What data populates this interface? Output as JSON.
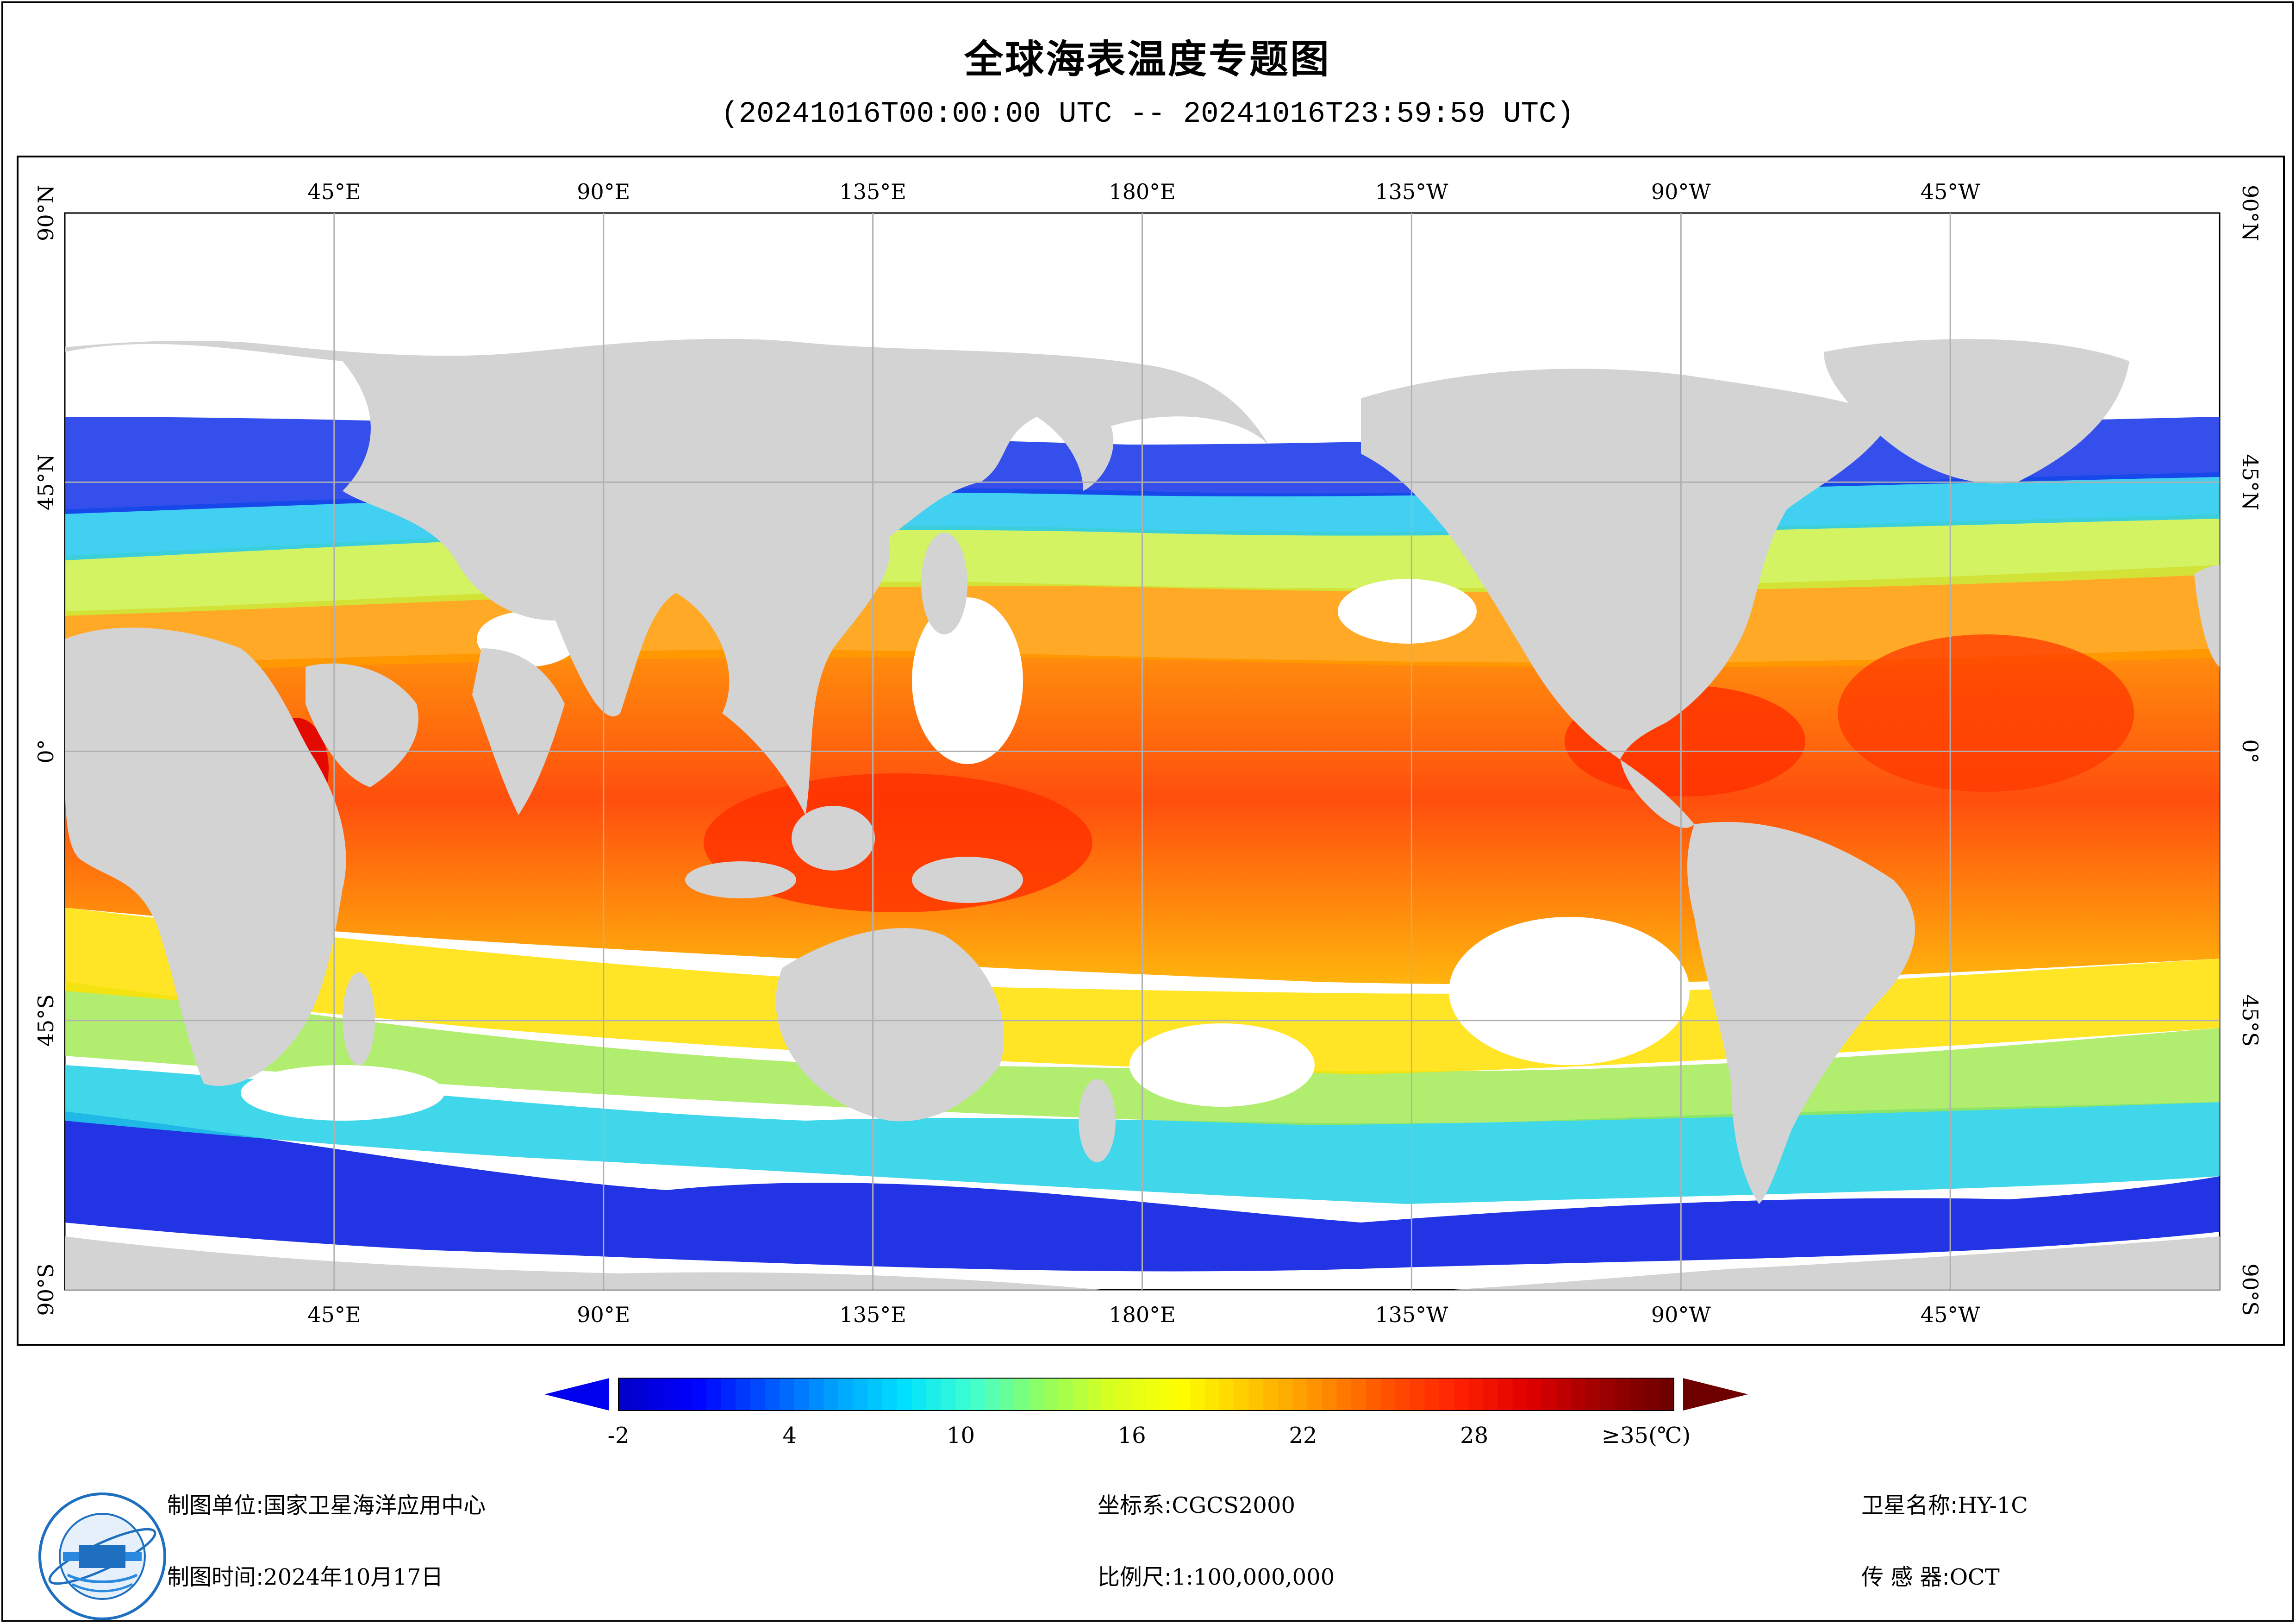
{
  "title": "全球海表温度专题图",
  "subtitle": "(20241016T00:00:00 UTC -- 20241016T23:59:59 UTC)",
  "map": {
    "lon_labels": [
      "45°E",
      "90°E",
      "135°E",
      "180°E",
      "135°W",
      "90°W",
      "45°W"
    ],
    "lat_labels": [
      "90°N",
      "45°N",
      "0°",
      "45°S",
      "90°S"
    ],
    "land_color": "#d3d3d3",
    "ocean_nodata_color": "#ffffff",
    "grid_color": "#b0b0b0"
  },
  "legend": {
    "tick_labels": [
      "-2",
      "4",
      "10",
      "16",
      "22",
      "28",
      "≥35(℃)"
    ],
    "min": -2,
    "max": 35,
    "unit": "℃",
    "colors": [
      "#0000cc",
      "#0000ff",
      "#0050ff",
      "#00a0ff",
      "#00e0ff",
      "#40ffd0",
      "#90ff60",
      "#d8ff20",
      "#ffff00",
      "#ffc800",
      "#ff9000",
      "#ff5000",
      "#ff2000",
      "#e00000",
      "#a00000",
      "#700000"
    ]
  },
  "footer": {
    "unit_label": "制图单位:",
    "unit_value": "国家卫星海洋应用中心",
    "time_label": "制图时间:",
    "time_value": "2024年10月17日",
    "crs_label": "坐标系:",
    "crs_value": "CGCS2000",
    "scale_label": "比例尺:",
    "scale_value": "1:100,000,000",
    "satellite_label": "卫星名称:",
    "satellite_value": "HY-1C",
    "sensor_label": "传 感 器:",
    "sensor_value": "OCT"
  },
  "logo_icon": "nsoas-logo-icon"
}
